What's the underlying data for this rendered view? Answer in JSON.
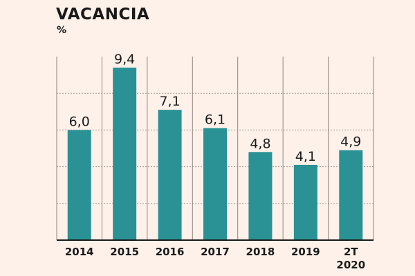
{
  "chart_data": {
    "type": "bar",
    "title": "VACANCIA",
    "ylabel": "%",
    "categories": [
      [
        "2014"
      ],
      [
        "2015"
      ],
      [
        "2016"
      ],
      [
        "2017"
      ],
      [
        "2018"
      ],
      [
        "2019"
      ],
      [
        "2T",
        "2020"
      ]
    ],
    "values": [
      6.0,
      9.4,
      7.1,
      6.1,
      4.8,
      4.1,
      4.9
    ],
    "data_labels": [
      "6,0",
      "9,4",
      "7,1",
      "6,1",
      "4,8",
      "4,1",
      "4,9"
    ],
    "ylim": [
      0,
      10
    ],
    "gridlines": [
      2,
      4,
      6,
      8
    ],
    "grid": true,
    "colors": {
      "bar": "#2a9295",
      "background": "#fdf1ea",
      "text": "#1a1a1a"
    }
  }
}
